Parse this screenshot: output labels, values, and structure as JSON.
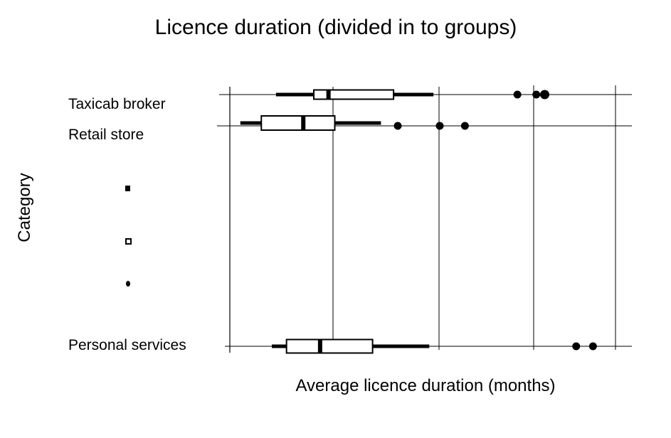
{
  "chart_data": {
    "type": "boxplot",
    "title": "Licence duration (divided in to groups)",
    "xlabel": "Average licence duration (months)",
    "ylabel": "Category",
    "grid": true,
    "categories": [
      "Taxicab broker",
      "Retail store",
      "Personal services"
    ],
    "series": [
      {
        "category": "Taxicab broker",
        "whisker_low": 2.2,
        "q1": 4.0,
        "median": 4.7,
        "q3": 7.8,
        "whisker_high": 9.7,
        "outliers": [
          13.7,
          14.6,
          15.0
        ]
      },
      {
        "category": "Retail store",
        "whisker_low": 0.5,
        "q1": 1.5,
        "median": 3.5,
        "q3": 5.0,
        "whisker_high": 7.2,
        "outliers": [
          8.0,
          10.0,
          11.2
        ]
      },
      {
        "category": "Personal services",
        "whisker_low": 2.0,
        "q1": 2.7,
        "median": 4.3,
        "q3": 6.8,
        "whisker_high": 9.5,
        "outliers": [
          16.5,
          17.3
        ]
      }
    ]
  }
}
